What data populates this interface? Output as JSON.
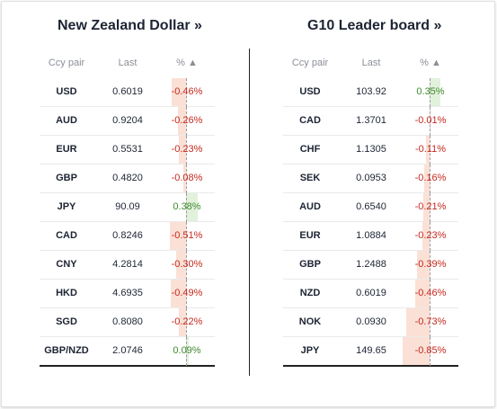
{
  "colors": {
    "negative_text": "#c42a1f",
    "positive_text": "#3f8a2e",
    "negative_bar": "#fbe0d6",
    "positive_bar": "#e2f1dc"
  },
  "left": {
    "title": "New Zealand Dollar »",
    "headers": {
      "pair": "Ccy pair",
      "last": "Last",
      "pct": "% ▲"
    },
    "rows": [
      {
        "pair": "USD",
        "last": "0.6019",
        "pct": "-0.46%",
        "value": -0.46
      },
      {
        "pair": "AUD",
        "last": "0.9204",
        "pct": "-0.26%",
        "value": -0.26
      },
      {
        "pair": "EUR",
        "last": "0.5531",
        "pct": "-0.23%",
        "value": -0.23
      },
      {
        "pair": "GBP",
        "last": "0.4820",
        "pct": "-0.08%",
        "value": -0.08
      },
      {
        "pair": "JPY",
        "last": "90.09",
        "pct": "0.38%",
        "value": 0.38
      },
      {
        "pair": "CAD",
        "last": "0.8246",
        "pct": "-0.51%",
        "value": -0.51
      },
      {
        "pair": "CNY",
        "last": "4.2814",
        "pct": "-0.30%",
        "value": -0.3
      },
      {
        "pair": "HKD",
        "last": "4.6935",
        "pct": "-0.49%",
        "value": -0.49
      },
      {
        "pair": "SGD",
        "last": "0.8080",
        "pct": "-0.22%",
        "value": -0.22
      },
      {
        "pair": "GBP/NZD",
        "last": "2.0746",
        "pct": "0.09%",
        "value": 0.09
      }
    ]
  },
  "right": {
    "title": "G10 Leader board »",
    "headers": {
      "pair": "Ccy pair",
      "last": "Last",
      "pct": "% ▲"
    },
    "rows": [
      {
        "pair": "USD",
        "last": "103.92",
        "pct": "0.35%",
        "value": 0.35
      },
      {
        "pair": "CAD",
        "last": "1.3701",
        "pct": "-0.01%",
        "value": -0.01
      },
      {
        "pair": "CHF",
        "last": "1.1305",
        "pct": "-0.11%",
        "value": -0.11
      },
      {
        "pair": "SEK",
        "last": "0.0953",
        "pct": "-0.16%",
        "value": -0.16
      },
      {
        "pair": "AUD",
        "last": "0.6540",
        "pct": "-0.21%",
        "value": -0.21
      },
      {
        "pair": "EUR",
        "last": "1.0884",
        "pct": "-0.23%",
        "value": -0.23
      },
      {
        "pair": "GBP",
        "last": "1.2488",
        "pct": "-0.39%",
        "value": -0.39
      },
      {
        "pair": "NZD",
        "last": "0.6019",
        "pct": "-0.46%",
        "value": -0.46
      },
      {
        "pair": "NOK",
        "last": "0.0930",
        "pct": "-0.73%",
        "value": -0.73
      },
      {
        "pair": "JPY",
        "last": "149.65",
        "pct": "-0.85%",
        "value": -0.85
      }
    ]
  }
}
